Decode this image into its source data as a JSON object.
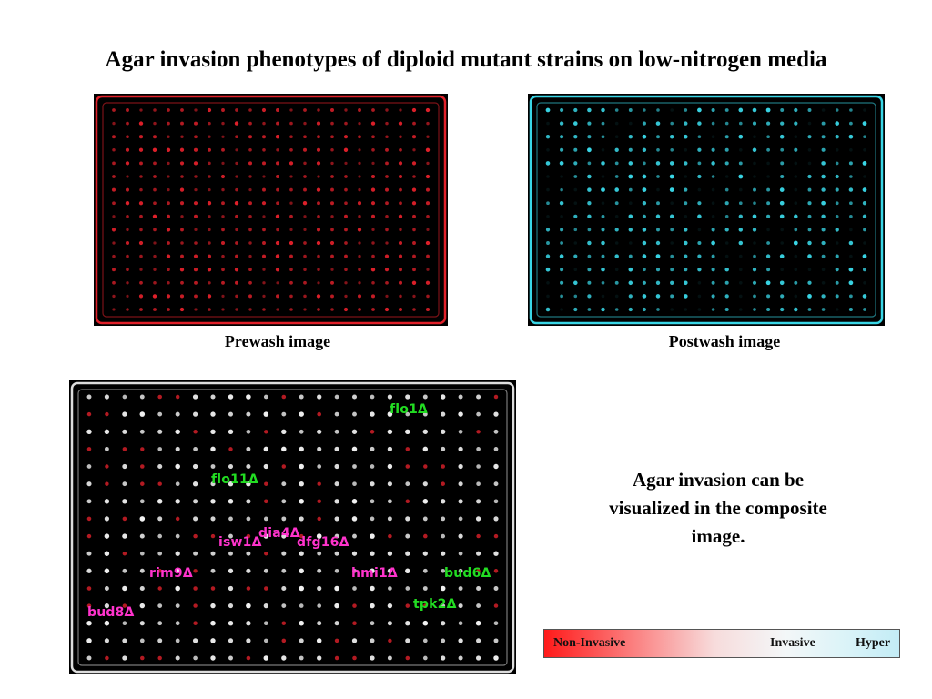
{
  "title": "Agar invasion phenotypes of diploid mutant strains on low-nitrogen media",
  "captions": {
    "prewash": "Prewash image",
    "postwash": "Postwash image"
  },
  "note": "Agar invasion can be visualized in the composite image.",
  "colors": {
    "prewash": "#e0202a",
    "postwash": "#39d6e6",
    "composite_spot": "#f2f2f2",
    "invasive_label": "#22dd22",
    "noninvasive_label": "#ff33cc"
  },
  "strains": [
    {
      "label": "flo1Δ",
      "class": "invasive"
    },
    {
      "label": "flo11Δ",
      "class": "invasive"
    },
    {
      "label": "dia4Δ",
      "class": "noninvasive"
    },
    {
      "label": "isw1Δ",
      "class": "noninvasive"
    },
    {
      "label": "dfg16Δ",
      "class": "noninvasive"
    },
    {
      "label": "rim9Δ",
      "class": "noninvasive"
    },
    {
      "label": "hmi1Δ",
      "class": "noninvasive"
    },
    {
      "label": "bud6Δ",
      "class": "invasive"
    },
    {
      "label": "tpk2Δ",
      "class": "invasive"
    },
    {
      "label": "bud8Δ",
      "class": "noninvasive"
    }
  ],
  "scale": {
    "non_invasive": "Non-Invasive",
    "invasive": "Invasive",
    "hyper": "Hyper"
  }
}
